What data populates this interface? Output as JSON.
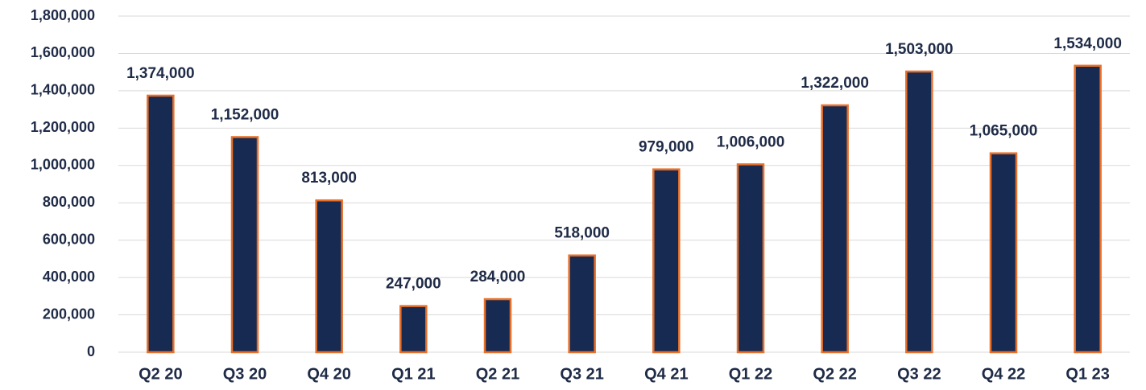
{
  "chart_data": {
    "type": "bar",
    "categories": [
      "Q2 20",
      "Q3 20",
      "Q4 20",
      "Q1 21",
      "Q2 21",
      "Q3 21",
      "Q4 21",
      "Q1 22",
      "Q2 22",
      "Q3 22",
      "Q4 22",
      "Q1 23"
    ],
    "values": [
      1374000,
      1152000,
      813000,
      247000,
      284000,
      518000,
      979000,
      1006000,
      1322000,
      1503000,
      1065000,
      1534000
    ],
    "value_labels": [
      "1,374,000",
      "1,152,000",
      "813,000",
      "247,000",
      "284,000",
      "518,000",
      "979,000",
      "1,006,000",
      "1,322,000",
      "1,503,000",
      "1,065,000",
      "1,534,000"
    ],
    "color": "#172a52",
    "edge_color": "#e8702a",
    "ylim": [
      0,
      1800000
    ],
    "yticks": [
      0,
      {
        "value": 200000,
        "label": "200,000"
      },
      {
        "value": 400000,
        "label": "400,000"
      },
      {
        "value": 600000,
        "label": "600,000"
      },
      {
        "value": 800000,
        "label": "800,000"
      },
      {
        "value": 1000000,
        "label": "1,000,000"
      },
      {
        "value": 1200000,
        "label": "1,200,000"
      },
      {
        "value": 1400000,
        "label": "1,400,000"
      },
      {
        "value": 1600000,
        "label": "1,600,000"
      },
      {
        "value": 1800000,
        "label": "1,800,000"
      }
    ],
    "grid": true
  }
}
